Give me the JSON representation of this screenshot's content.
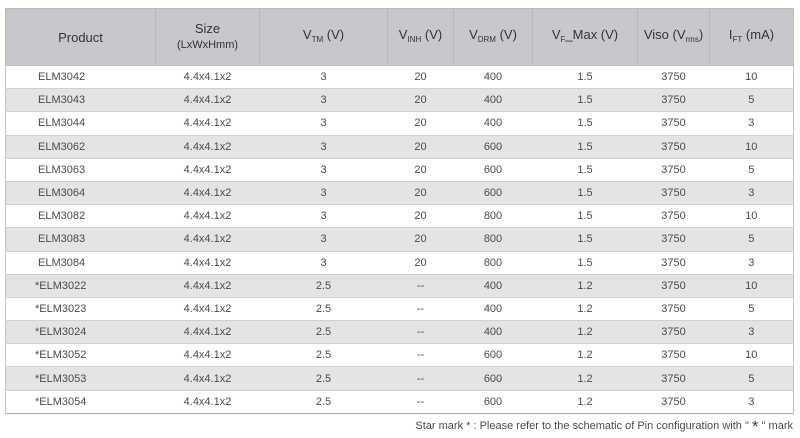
{
  "headers": {
    "product": "Product",
    "size_line1": "Size",
    "size_line2": "(LxWxHmm)",
    "vtm_main": "V",
    "vtm_sub": "TM",
    "vtm_unit": " (V)",
    "vinh_main": "V",
    "vinh_sub": "INH",
    "vinh_unit": " (V)",
    "vdrm_main": "V",
    "vdrm_sub": "DRM",
    "vdrm_unit": " (V)",
    "vf_main": "V",
    "vf_sub": "F",
    "vf_unit": "_Max (V)",
    "viso_main": "Viso (V",
    "viso_sub": "rms",
    "viso_unit": ")",
    "ift_main": "I",
    "ift_sub": "FT",
    "ift_unit": " (mA)"
  },
  "rows": [
    {
      "product": "ELM3042",
      "size": "4.4x4.1x2",
      "vtm": "3",
      "vinh": "20",
      "vdrm": "400",
      "vf": "1.5",
      "viso": "3750",
      "ift": "10"
    },
    {
      "product": "ELM3043",
      "size": "4.4x4.1x2",
      "vtm": "3",
      "vinh": "20",
      "vdrm": "400",
      "vf": "1.5",
      "viso": "3750",
      "ift": "5"
    },
    {
      "product": "ELM3044",
      "size": "4.4x4.1x2",
      "vtm": "3",
      "vinh": "20",
      "vdrm": "400",
      "vf": "1.5",
      "viso": "3750",
      "ift": "3"
    },
    {
      "product": "ELM3062",
      "size": "4.4x4.1x2",
      "vtm": "3",
      "vinh": "20",
      "vdrm": "600",
      "vf": "1.5",
      "viso": "3750",
      "ift": "10"
    },
    {
      "product": "ELM3063",
      "size": "4.4x4.1x2",
      "vtm": "3",
      "vinh": "20",
      "vdrm": "600",
      "vf": "1.5",
      "viso": "3750",
      "ift": "5"
    },
    {
      "product": "ELM3064",
      "size": "4.4x4.1x2",
      "vtm": "3",
      "vinh": "20",
      "vdrm": "600",
      "vf": "1.5",
      "viso": "3750",
      "ift": "3"
    },
    {
      "product": "ELM3082",
      "size": "4.4x4.1x2",
      "vtm": "3",
      "vinh": "20",
      "vdrm": "800",
      "vf": "1.5",
      "viso": "3750",
      "ift": "10"
    },
    {
      "product": "ELM3083",
      "size": "4.4x4.1x2",
      "vtm": "3",
      "vinh": "20",
      "vdrm": "800",
      "vf": "1.5",
      "viso": "3750",
      "ift": "5"
    },
    {
      "product": "ELM3084",
      "size": "4.4x4.1x2",
      "vtm": "3",
      "vinh": "20",
      "vdrm": "800",
      "vf": "1.5",
      "viso": "3750",
      "ift": "3"
    },
    {
      "product": "*ELM3022",
      "size": "4.4x4.1x2",
      "vtm": "2.5",
      "vinh": "--",
      "vdrm": "400",
      "vf": "1.2",
      "viso": "3750",
      "ift": "10"
    },
    {
      "product": "*ELM3023",
      "size": "4.4x4.1x2",
      "vtm": "2.5",
      "vinh": "--",
      "vdrm": "400",
      "vf": "1.2",
      "viso": "3750",
      "ift": "5"
    },
    {
      "product": "*ELM3024",
      "size": "4.4x4.1x2",
      "vtm": "2.5",
      "vinh": "--",
      "vdrm": "400",
      "vf": "1.2",
      "viso": "3750",
      "ift": "3"
    },
    {
      "product": "*ELM3052",
      "size": "4.4x4.1x2",
      "vtm": "2.5",
      "vinh": "--",
      "vdrm": "600",
      "vf": "1.2",
      "viso": "3750",
      "ift": "10"
    },
    {
      "product": "*ELM3053",
      "size": "4.4x4.1x2",
      "vtm": "2.5",
      "vinh": "--",
      "vdrm": "600",
      "vf": "1.2",
      "viso": "3750",
      "ift": "5"
    },
    {
      "product": "*ELM3054",
      "size": "4.4x4.1x2",
      "vtm": "2.5",
      "vinh": "--",
      "vdrm": "600",
      "vf": "1.2",
      "viso": "3750",
      "ift": "3"
    }
  ],
  "footnote": {
    "before": "Star mark * : Please refer to the schematic of Pin configuration with \" ",
    "star": "*",
    "after": " \" mark"
  }
}
